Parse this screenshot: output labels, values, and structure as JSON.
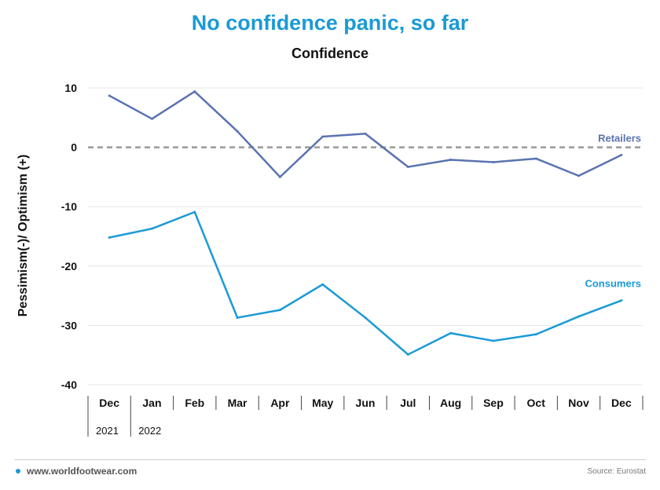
{
  "title": "No confidence panic, so far",
  "footer": {
    "site": "www.worldfootwear.com",
    "source": "Source: Eurostat"
  },
  "colors": {
    "title": "#1a9ad6",
    "retailers": "#5a73b0",
    "consumers": "#1a9ad6",
    "zero_line": "#999999"
  },
  "chart_data": {
    "type": "line",
    "title": "Confidence",
    "ylabel": "Pessimism(-)/ Optimism (+)",
    "xlabel": "",
    "categories": [
      "Dec",
      "Jan",
      "Feb",
      "Mar",
      "Apr",
      "May",
      "Jun",
      "Jul",
      "Aug",
      "Sep",
      "Oct",
      "Nov",
      "Dec"
    ],
    "year_labels": [
      {
        "label": "2021",
        "index": 0
      },
      {
        "label": "2022",
        "index": 1
      }
    ],
    "ylim": [
      -40,
      10
    ],
    "yticks": [
      10,
      0,
      -10,
      -20,
      -30,
      -40
    ],
    "grid": true,
    "reference_line": {
      "y": 0,
      "style": "dashed"
    },
    "series": [
      {
        "name": "Retailers",
        "color": "#5a73b0",
        "values": [
          8.7,
          4.8,
          9.4,
          2.7,
          -5.0,
          1.8,
          2.3,
          -3.3,
          -2.1,
          -2.5,
          -1.9,
          -4.8,
          -1.3
        ]
      },
      {
        "name": "Consumers",
        "color": "#1a9ad6",
        "values": [
          -15.2,
          -13.7,
          -10.9,
          -28.7,
          -27.4,
          -23.1,
          -28.7,
          -34.9,
          -31.3,
          -32.6,
          -31.5,
          -28.5,
          -25.8
        ]
      }
    ]
  }
}
